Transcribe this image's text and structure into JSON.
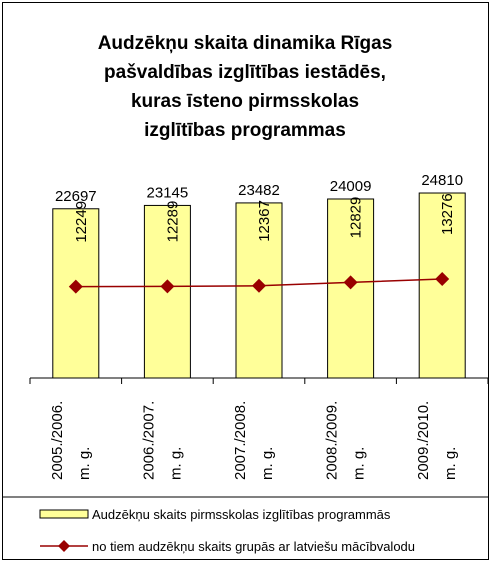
{
  "chart_data": {
    "type": "bar_line",
    "title": [
      "Audzēkņu skaita dinamika Rīgas",
      "pašvaldības izglītības iestādēs,",
      "kuras īsteno pirmsskolas",
      "izglītības programmas"
    ],
    "categories": [
      [
        "2005./2006.",
        "m. g."
      ],
      [
        "2006./2007.",
        "m. g."
      ],
      [
        "2007./2008.",
        "m. g."
      ],
      [
        "2008./2009.",
        "m. g."
      ],
      [
        "2009./2010.",
        "m. g."
      ]
    ],
    "series": [
      {
        "name": "Audzēkņu skaits pirmsskolas izglītības programmās",
        "kind": "bar",
        "color": "#ffff99",
        "values": [
          22697,
          23145,
          23482,
          24009,
          24810
        ]
      },
      {
        "name": "no tiem audzēkņu skaits grupās ar latviešu mācībvalodu",
        "kind": "line",
        "color": "#990000",
        "values": [
          12249,
          12289,
          12367,
          12829,
          13276
        ]
      }
    ],
    "ylim": [
      0,
      25000
    ]
  }
}
